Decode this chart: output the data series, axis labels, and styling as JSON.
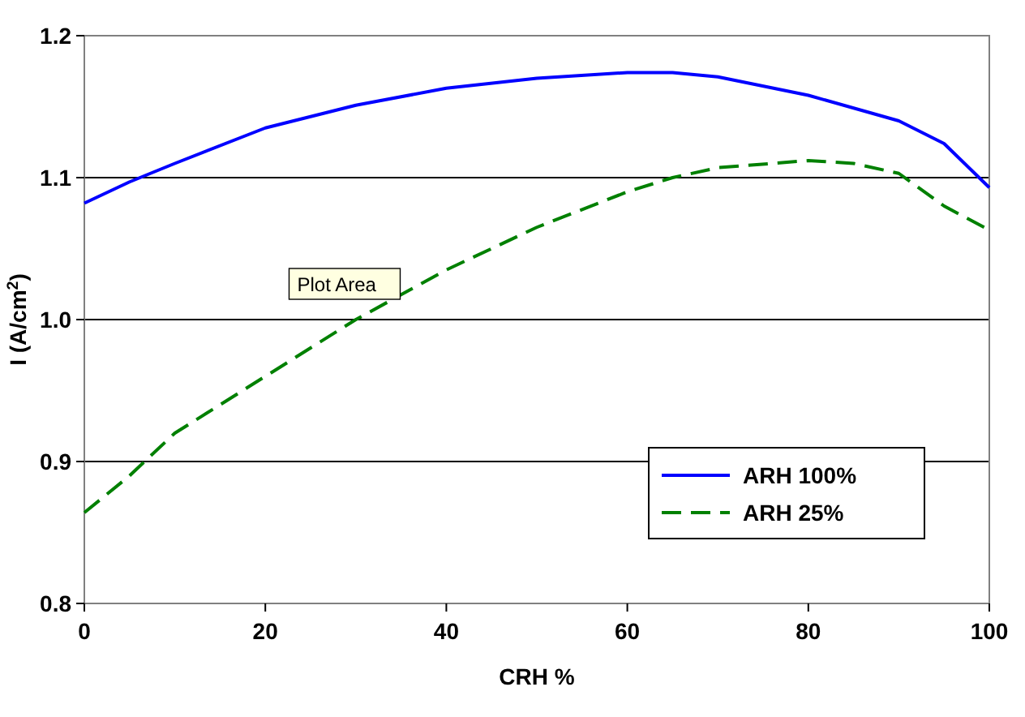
{
  "chart_data": {
    "type": "line",
    "xlabel": "CRH %",
    "ylabel": "I (A/cm$^{2}$)",
    "xlim": [
      0,
      100
    ],
    "xticks": [
      0,
      20,
      40,
      60,
      80,
      100
    ],
    "ylim": [
      0.8,
      1.2
    ],
    "yticks": [
      {
        "value": 0.8,
        "label": "0.8"
      },
      {
        "value": 0.9,
        "label": "0.9"
      },
      {
        "value": 1.0,
        "label": "1.0"
      },
      {
        "value": 1.1,
        "label": "1.1"
      },
      {
        "value": 1.2,
        "label": "1.2"
      }
    ],
    "grid": "y",
    "legend": "bottom right",
    "marker": "none",
    "annotations": [
      "Plot Area"
    ],
    "series": [
      {
        "name": "ARH 100%",
        "color": "#0000ff",
        "line_style": "solid",
        "x": [
          0,
          5,
          10,
          20,
          30,
          40,
          50,
          60,
          65,
          70,
          80,
          90,
          95,
          100
        ],
        "values": [
          1.082,
          1.097,
          1.11,
          1.135,
          1.151,
          1.163,
          1.17,
          1.174,
          1.174,
          1.171,
          1.158,
          1.14,
          1.124,
          1.093
        ]
      },
      {
        "name": "ARH 25%",
        "color": "#008000",
        "line_style": "dashed",
        "x": [
          0,
          5,
          10,
          20,
          30,
          40,
          50,
          60,
          65,
          70,
          80,
          85,
          90,
          95,
          100
        ],
        "values": [
          0.864,
          0.89,
          0.92,
          0.96,
          1.0,
          1.035,
          1.065,
          1.09,
          1.1,
          1.107,
          1.112,
          1.11,
          1.103,
          1.08,
          1.063
        ]
      }
    ]
  }
}
